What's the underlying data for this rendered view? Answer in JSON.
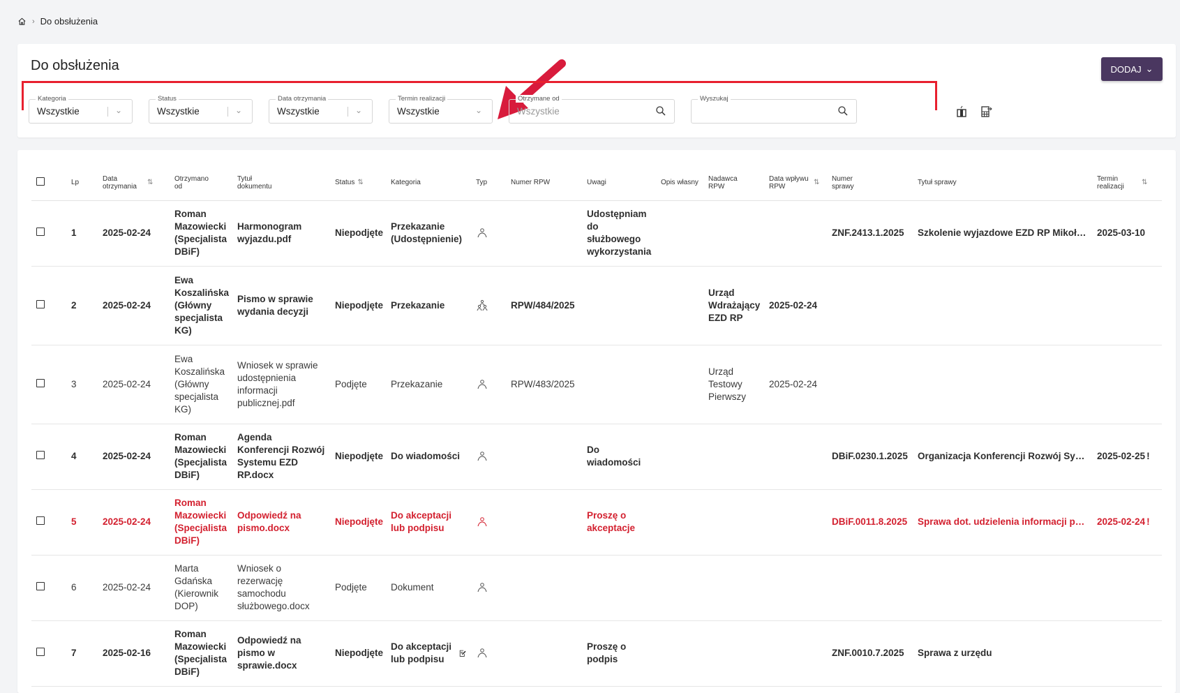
{
  "breadcrumb": {
    "home_icon": "home-icon",
    "current": "Do obsłużenia"
  },
  "page": {
    "title": "Do obsłużenia",
    "add_button": "DODAJ"
  },
  "filters": [
    {
      "label": "Kategoria",
      "value": "Wszystkie",
      "type": "select"
    },
    {
      "label": "Status",
      "value": "Wszystkie",
      "type": "select"
    },
    {
      "label": "Data otrzymania",
      "value": "Wszystkie",
      "type": "select"
    },
    {
      "label": "Termin realizacji",
      "value": "Wszystkie",
      "type": "select-simple"
    },
    {
      "label": "Otrzymane od",
      "placeholder": "Wszystkie",
      "type": "search"
    },
    {
      "label": "Wyszukaj",
      "placeholder": "",
      "type": "search"
    }
  ],
  "toolbar_icons": [
    "column-chooser-icon",
    "export-excel-icon"
  ],
  "colors": {
    "accent": "#4a3760",
    "highlight": "#e8202f",
    "urgent": "#d3202f"
  },
  "columns": [
    "",
    "Lp",
    "Data otrzymania",
    "Otrzymano od",
    "Tytuł dokumentu",
    "Status",
    "Kategoria",
    "Typ",
    "Numer RPW",
    "Uwagi",
    "Opis własny",
    "Nadawca RPW",
    "Data wpływu RPW",
    "Numer sprawy",
    "Tytuł sprawy",
    "Termin realizacji"
  ],
  "sortable": [
    2,
    5,
    12,
    15
  ],
  "rows": [
    {
      "style": "b",
      "lp": "1",
      "data": "2025-02-24",
      "od": "Roman Mazowiecki (Specjalista DBiF)",
      "tytul": "Harmonogram wyjazdu.pdf",
      "status": "Niepodjęte",
      "kategoria": "Przekazanie (Udostępnienie)",
      "typ": "person-icon",
      "rpw": "",
      "uwagi": "Udostępniam do służbowego wykorzystania",
      "opis": "",
      "nadawca": "",
      "data_rpw": "",
      "sprawa": "ZNF.2413.1.2025",
      "tytul_sprawy": "Szkolenie wyjazdowe EZD RP Mikołajk...",
      "termin": "2025-03-10",
      "urgent": false
    },
    {
      "style": "b",
      "lp": "2",
      "data": "2025-02-24",
      "od": "Ewa Koszalińska (Główny specjalista KG)",
      "tytul": "Pismo w sprawie wydania decyzji",
      "status": "Niepodjęte",
      "kategoria": "Przekazanie",
      "typ": "group-icon",
      "rpw": "RPW/484/2025",
      "uwagi": "",
      "opis": "",
      "nadawca": "Urząd Wdrażający EZD RP",
      "data_rpw": "2025-02-24",
      "sprawa": "",
      "tytul_sprawy": "",
      "termin": "",
      "urgent": false
    },
    {
      "style": "n",
      "lp": "3",
      "data": "2025-02-24",
      "od": "Ewa Koszalińska (Główny specjalista KG)",
      "tytul": "Wniosek w sprawie udostępnienia informacji publicznej.pdf",
      "status": "Podjęte",
      "kategoria": "Przekazanie",
      "typ": "person-icon",
      "rpw": "RPW/483/2025",
      "uwagi": "",
      "opis": "",
      "nadawca": "Urząd Testowy Pierwszy",
      "data_rpw": "2025-02-24",
      "sprawa": "",
      "tytul_sprawy": "",
      "termin": "",
      "urgent": false
    },
    {
      "style": "b",
      "lp": "4",
      "data": "2025-02-24",
      "od": "Roman Mazowiecki (Specjalista DBiF)",
      "tytul": "Agenda Konferencji Rozwój Systemu EZD RP.docx",
      "status": "Niepodjęte",
      "kategoria": "Do wiadomości",
      "typ": "person-icon",
      "rpw": "",
      "uwagi": "Do wiadomości",
      "opis": "",
      "nadawca": "",
      "data_rpw": "",
      "sprawa": "DBiF.0230.1.2025",
      "tytul_sprawy": "Organizacja Konferencji Rozwój Syste...",
      "termin": "2025-02-25",
      "urgent": true
    },
    {
      "style": "r",
      "lp": "5",
      "data": "2025-02-24",
      "od": "Roman Mazowiecki (Specjalista DBiF)",
      "tytul": "Odpowiedź na pismo.docx",
      "status": "Niepodjęte",
      "kategoria": "Do akceptacji lub podpisu",
      "typ": "person-icon",
      "rpw": "",
      "uwagi": "Proszę o akceptacje",
      "opis": "",
      "nadawca": "",
      "data_rpw": "",
      "sprawa": "DBiF.0011.8.2025",
      "tytul_sprawy": "Sprawa dot. udzielenia informacji publi...",
      "termin": "2025-02-24",
      "urgent": true
    },
    {
      "style": "n",
      "lp": "6",
      "data": "2025-02-24",
      "od": "Marta Gdańska (Kierownik DOP)",
      "tytul": "Wniosek o rezerwację samochodu służbowego.docx",
      "status": "Podjęte",
      "kategoria": "Dokument",
      "typ": "person-icon",
      "rpw": "",
      "uwagi": "",
      "opis": "",
      "nadawca": "",
      "data_rpw": "",
      "sprawa": "",
      "tytul_sprawy": "",
      "termin": "",
      "urgent": false
    },
    {
      "style": "b",
      "lp": "7",
      "data": "2025-02-16",
      "od": "Roman Mazowiecki (Specjalista DBiF)",
      "tytul": "Odpowiedź na pismo w sprawie.docx",
      "status": "Niepodjęte",
      "kategoria": "Do akceptacji lub podpisu",
      "kategoria_icon": "sign-document-icon",
      "typ": "person-icon",
      "rpw": "",
      "uwagi": "Proszę o podpis",
      "opis": "",
      "nadawca": "",
      "data_rpw": "",
      "sprawa": "ZNF.0010.7.2025",
      "tytul_sprawy": "Sprawa z urzędu",
      "termin": "",
      "urgent": false
    }
  ]
}
